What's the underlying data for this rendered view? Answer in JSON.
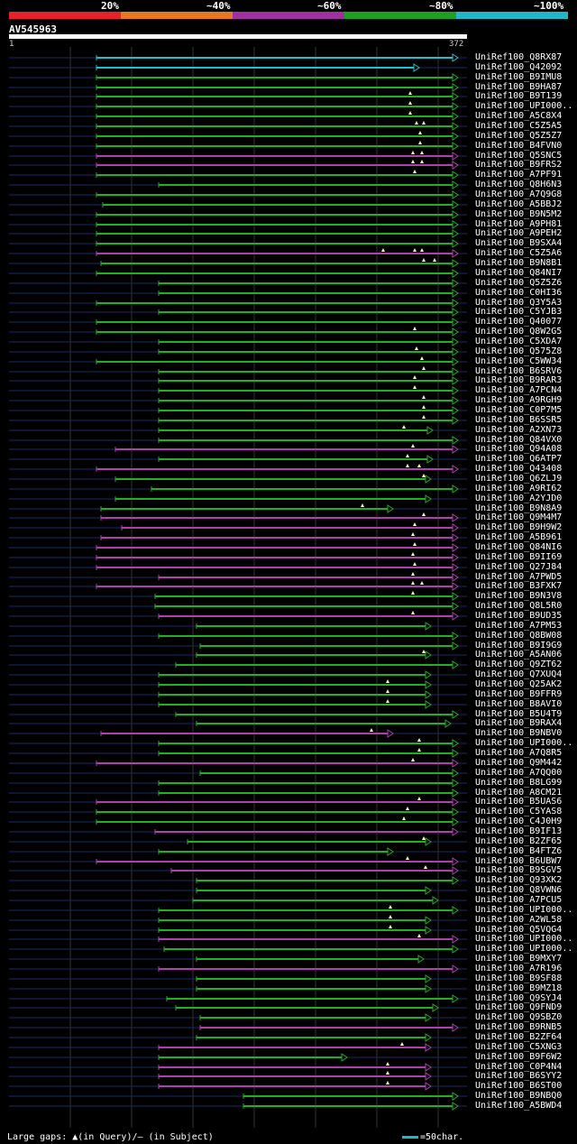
{
  "header": {
    "percent_labels": [
      "20%",
      "~40%",
      "~60%",
      "~80%",
      "~100%"
    ],
    "identity_colors": [
      "#e8202a",
      "#e87820",
      "#a030a0",
      "#20a020",
      "#20b8c8"
    ],
    "query_id": "AV545963",
    "ruler_start": "1",
    "ruler_end": "372",
    "query_length": 372
  },
  "footer": {
    "gaps_text": "Large gaps: ▲(in Query)/– (in Subject)",
    "scale_text": "=50char.",
    "scale_color": "#20b8c8"
  },
  "colors": {
    "cyan": "#20c0d0",
    "green": "#20b020",
    "purple": "#b040b0",
    "unaligned": "#1a2a6a",
    "grid": "#333333"
  },
  "hits": [
    {
      "name": "UniRef100_Q8RX87",
      "start": 107,
      "end": 508,
      "color": "cyan",
      "tri": []
    },
    {
      "name": "UniRef100_Q42092",
      "start": 107,
      "end": 465,
      "color": "cyan",
      "tri": []
    },
    {
      "name": "UniRef100_B9IMU8",
      "start": 107,
      "end": 508,
      "color": "green",
      "tri": []
    },
    {
      "name": "UniRef100_B9HA87",
      "start": 107,
      "end": 508,
      "color": "green",
      "tri": []
    },
    {
      "name": "UniRef100_B9T139",
      "start": 107,
      "end": 508,
      "color": "green",
      "tri": [
        455
      ]
    },
    {
      "name": "UniRef100_UPI000..",
      "start": 107,
      "end": 508,
      "color": "green",
      "tri": [
        455
      ]
    },
    {
      "name": "UniRef100_A5C8X4",
      "start": 107,
      "end": 508,
      "color": "green",
      "tri": [
        455
      ]
    },
    {
      "name": "UniRef100_C5Z5A5",
      "start": 107,
      "end": 508,
      "color": "green",
      "tri": [
        462,
        470
      ]
    },
    {
      "name": "UniRef100_Q5Z5Z7",
      "start": 107,
      "end": 508,
      "color": "green",
      "tri": [
        466
      ]
    },
    {
      "name": "UniRef100_B4FVN0",
      "start": 107,
      "end": 508,
      "color": "green",
      "tri": [
        466
      ]
    },
    {
      "name": "UniRef100_Q5SNC5",
      "start": 107,
      "end": 508,
      "color": "purple",
      "tri": [
        458,
        468
      ]
    },
    {
      "name": "UniRef100_B9FRS2",
      "start": 107,
      "end": 508,
      "color": "purple",
      "tri": [
        458,
        468
      ]
    },
    {
      "name": "UniRef100_A7PF91",
      "start": 107,
      "end": 508,
      "color": "green",
      "tri": [
        460
      ]
    },
    {
      "name": "UniRef100_Q8H6N3",
      "start": 176,
      "end": 508,
      "color": "green",
      "tri": []
    },
    {
      "name": "UniRef100_A7Q9G8",
      "start": 107,
      "end": 508,
      "color": "green",
      "tri": []
    },
    {
      "name": "UniRef100_A5BBJ2",
      "start": 114,
      "end": 508,
      "color": "green",
      "tri": []
    },
    {
      "name": "UniRef100_B9N5M2",
      "start": 107,
      "end": 508,
      "color": "green",
      "tri": []
    },
    {
      "name": "UniRef100_A9PH81",
      "start": 107,
      "end": 508,
      "color": "green",
      "tri": []
    },
    {
      "name": "UniRef100_A9PEH2",
      "start": 107,
      "end": 508,
      "color": "green",
      "tri": []
    },
    {
      "name": "UniRef100_B9SXA4",
      "start": 107,
      "end": 508,
      "color": "green",
      "tri": []
    },
    {
      "name": "UniRef100_C5Z5A6",
      "start": 107,
      "end": 508,
      "color": "purple",
      "tri": [
        425,
        460,
        468
      ]
    },
    {
      "name": "UniRef100_B9N8B1",
      "start": 112,
      "end": 508,
      "color": "green",
      "tri": [
        470,
        482
      ]
    },
    {
      "name": "UniRef100_Q84NI7",
      "start": 107,
      "end": 508,
      "color": "green",
      "tri": []
    },
    {
      "name": "UniRef100_Q5Z5Z6",
      "start": 176,
      "end": 508,
      "color": "green",
      "tri": []
    },
    {
      "name": "UniRef100_C0HI36",
      "start": 176,
      "end": 508,
      "color": "green",
      "tri": []
    },
    {
      "name": "UniRef100_Q3Y5A3",
      "start": 107,
      "end": 508,
      "color": "green",
      "tri": []
    },
    {
      "name": "UniRef100_C5YJB3",
      "start": 176,
      "end": 508,
      "color": "green",
      "tri": []
    },
    {
      "name": "UniRef100_Q40077",
      "start": 107,
      "end": 508,
      "color": "green",
      "tri": []
    },
    {
      "name": "UniRef100_Q8W2G5",
      "start": 107,
      "end": 508,
      "color": "green",
      "tri": [
        460
      ]
    },
    {
      "name": "UniRef100_C5XDA7",
      "start": 176,
      "end": 508,
      "color": "green",
      "tri": []
    },
    {
      "name": "UniRef100_Q575Z8",
      "start": 176,
      "end": 508,
      "color": "green",
      "tri": [
        462
      ]
    },
    {
      "name": "UniRef100_C5WW34",
      "start": 107,
      "end": 508,
      "color": "green",
      "tri": [
        468
      ]
    },
    {
      "name": "UniRef100_B6SRV6",
      "start": 176,
      "end": 508,
      "color": "green",
      "tri": [
        470
      ]
    },
    {
      "name": "UniRef100_B9RAR3",
      "start": 176,
      "end": 508,
      "color": "green",
      "tri": [
        460
      ]
    },
    {
      "name": "UniRef100_A7PCN4",
      "start": 176,
      "end": 508,
      "color": "green",
      "tri": [
        460
      ]
    },
    {
      "name": "UniRef100_A9RGH9",
      "start": 176,
      "end": 508,
      "color": "green",
      "tri": [
        470
      ]
    },
    {
      "name": "UniRef100_C0P7M5",
      "start": 176,
      "end": 508,
      "color": "green",
      "tri": [
        470
      ]
    },
    {
      "name": "UniRef100_B6SSR5",
      "start": 176,
      "end": 508,
      "color": "green",
      "tri": [
        470
      ]
    },
    {
      "name": "UniRef100_A2XN73",
      "start": 176,
      "end": 480,
      "color": "green",
      "tri": [
        448
      ]
    },
    {
      "name": "UniRef100_Q84VX0",
      "start": 176,
      "end": 508,
      "color": "green",
      "tri": []
    },
    {
      "name": "UniRef100_Q94A08",
      "start": 128,
      "end": 508,
      "color": "purple",
      "tri": [
        458
      ]
    },
    {
      "name": "UniRef100_Q6ATP7",
      "start": 176,
      "end": 480,
      "color": "green",
      "tri": [
        452
      ]
    },
    {
      "name": "UniRef100_Q43408",
      "start": 107,
      "end": 508,
      "color": "purple",
      "tri": [
        452,
        465
      ]
    },
    {
      "name": "UniRef100_Q6ZLJ9",
      "start": 128,
      "end": 478,
      "color": "green",
      "tri": [
        470
      ]
    },
    {
      "name": "UniRef100_A9RI62",
      "start": 168,
      "end": 508,
      "color": "green",
      "tri": []
    },
    {
      "name": "UniRef100_A2YJD0",
      "start": 128,
      "end": 478,
      "color": "green",
      "tri": []
    },
    {
      "name": "UniRef100_B9N8A9",
      "start": 112,
      "end": 436,
      "color": "green",
      "tri": [
        402
      ]
    },
    {
      "name": "UniRef100_Q9M4M7",
      "start": 112,
      "end": 508,
      "color": "purple",
      "tri": [
        470
      ]
    },
    {
      "name": "UniRef100_B9H9W2",
      "start": 135,
      "end": 508,
      "color": "purple",
      "tri": [
        460
      ]
    },
    {
      "name": "UniRef100_A5B961",
      "start": 112,
      "end": 508,
      "color": "purple",
      "tri": [
        458
      ]
    },
    {
      "name": "UniRef100_Q84NI6",
      "start": 107,
      "end": 508,
      "color": "purple",
      "tri": [
        460
      ]
    },
    {
      "name": "UniRef100_B9II69",
      "start": 107,
      "end": 508,
      "color": "purple",
      "tri": [
        458
      ]
    },
    {
      "name": "UniRef100_Q27J84",
      "start": 107,
      "end": 508,
      "color": "purple",
      "tri": [
        460
      ]
    },
    {
      "name": "UniRef100_A7PWD5",
      "start": 176,
      "end": 508,
      "color": "purple",
      "tri": [
        458
      ]
    },
    {
      "name": "UniRef100_B3FXK7",
      "start": 107,
      "end": 508,
      "color": "purple",
      "tri": [
        458,
        468
      ]
    },
    {
      "name": "UniRef100_B9N3V8",
      "start": 172,
      "end": 508,
      "color": "green",
      "tri": [
        458
      ]
    },
    {
      "name": "UniRef100_Q8L5R0",
      "start": 172,
      "end": 508,
      "color": "green",
      "tri": []
    },
    {
      "name": "UniRef100_B9UD35",
      "start": 176,
      "end": 508,
      "color": "purple",
      "tri": [
        458
      ]
    },
    {
      "name": "UniRef100_A7PM53",
      "start": 218,
      "end": 478,
      "color": "green",
      "tri": []
    },
    {
      "name": "UniRef100_Q8BW08",
      "start": 176,
      "end": 508,
      "color": "green",
      "tri": []
    },
    {
      "name": "UniRef100_B9I9G9",
      "start": 222,
      "end": 508,
      "color": "green",
      "tri": []
    },
    {
      "name": "UniRef100_A5AN06",
      "start": 218,
      "end": 478,
      "color": "green",
      "tri": [
        470
      ]
    },
    {
      "name": "UniRef100_Q9ZT62",
      "start": 195,
      "end": 508,
      "color": "green",
      "tri": []
    },
    {
      "name": "UniRef100_Q7XUQ4",
      "start": 176,
      "end": 478,
      "color": "green",
      "tri": []
    },
    {
      "name": "UniRef100_Q25AK2",
      "start": 176,
      "end": 478,
      "color": "green",
      "tri": [
        430
      ]
    },
    {
      "name": "UniRef100_B9FFR9",
      "start": 176,
      "end": 478,
      "color": "green",
      "tri": [
        430
      ]
    },
    {
      "name": "UniRef100_B8AVI0",
      "start": 176,
      "end": 478,
      "color": "green",
      "tri": [
        430
      ]
    },
    {
      "name": "UniRef100_B5U4T9",
      "start": 195,
      "end": 508,
      "color": "green",
      "tri": []
    },
    {
      "name": "UniRef100_B9RAX4",
      "start": 218,
      "end": 500,
      "color": "green",
      "tri": []
    },
    {
      "name": "UniRef100_B9NBV0",
      "start": 112,
      "end": 436,
      "color": "purple",
      "tri": [
        412
      ]
    },
    {
      "name": "UniRef100_UPI000..",
      "start": 176,
      "end": 508,
      "color": "green",
      "tri": [
        465
      ]
    },
    {
      "name": "UniRef100_A7Q8R5",
      "start": 176,
      "end": 508,
      "color": "green",
      "tri": [
        465
      ]
    },
    {
      "name": "UniRef100_Q9M442",
      "start": 107,
      "end": 508,
      "color": "purple",
      "tri": [
        458
      ]
    },
    {
      "name": "UniRef100_A7QQ00",
      "start": 222,
      "end": 508,
      "color": "green",
      "tri": []
    },
    {
      "name": "UniRef100_B8LG99",
      "start": 176,
      "end": 508,
      "color": "green",
      "tri": []
    },
    {
      "name": "UniRef100_A8CM21",
      "start": 176,
      "end": 508,
      "color": "green",
      "tri": []
    },
    {
      "name": "UniRef100_B5UAS6",
      "start": 107,
      "end": 508,
      "color": "purple",
      "tri": [
        465
      ]
    },
    {
      "name": "UniRef100_C5YAS8",
      "start": 107,
      "end": 508,
      "color": "green",
      "tri": [
        452
      ]
    },
    {
      "name": "UniRef100_C4J0H9",
      "start": 107,
      "end": 508,
      "color": "green",
      "tri": [
        448
      ]
    },
    {
      "name": "UniRef100_B9IF13",
      "start": 172,
      "end": 508,
      "color": "purple",
      "tri": []
    },
    {
      "name": "UniRef100_B2ZF65",
      "start": 208,
      "end": 478,
      "color": "green",
      "tri": [
        470
      ]
    },
    {
      "name": "UniRef100_B4FTZ6",
      "start": 176,
      "end": 436,
      "color": "green",
      "tri": []
    },
    {
      "name": "UniRef100_B6UBW7",
      "start": 107,
      "end": 508,
      "color": "purple",
      "tri": [
        452
      ]
    },
    {
      "name": "UniRef100_B9SGV5",
      "start": 190,
      "end": 508,
      "color": "purple",
      "tri": [
        472
      ]
    },
    {
      "name": "UniRef100_Q93XK2",
      "start": 218,
      "end": 508,
      "color": "green",
      "tri": []
    },
    {
      "name": "UniRef100_Q8VWN6",
      "start": 218,
      "end": 478,
      "color": "green",
      "tri": []
    },
    {
      "name": "UniRef100_A7PCU5",
      "start": 214,
      "end": 486,
      "color": "green",
      "tri": []
    },
    {
      "name": "UniRef100_UPI000..",
      "start": 176,
      "end": 508,
      "color": "green",
      "tri": [
        433
      ]
    },
    {
      "name": "UniRef100_A2WL58",
      "start": 176,
      "end": 478,
      "color": "green",
      "tri": [
        433
      ]
    },
    {
      "name": "UniRef100_Q5VQG4",
      "start": 176,
      "end": 478,
      "color": "green",
      "tri": [
        433
      ]
    },
    {
      "name": "UniRef100_UPI000..",
      "start": 176,
      "end": 508,
      "color": "purple",
      "tri": [
        465
      ]
    },
    {
      "name": "UniRef100_UPI000..",
      "start": 182,
      "end": 508,
      "color": "green",
      "tri": []
    },
    {
      "name": "UniRef100_B9MXY7",
      "start": 218,
      "end": 470,
      "color": "green",
      "tri": []
    },
    {
      "name": "UniRef100_A7R196",
      "start": 176,
      "end": 508,
      "color": "purple",
      "tri": []
    },
    {
      "name": "UniRef100_B9SF88",
      "start": 218,
      "end": 478,
      "color": "green",
      "tri": []
    },
    {
      "name": "UniRef100_B9MZ18",
      "start": 218,
      "end": 478,
      "color": "green",
      "tri": []
    },
    {
      "name": "UniRef100_Q9SYJ4",
      "start": 185,
      "end": 508,
      "color": "green",
      "tri": []
    },
    {
      "name": "UniRef100_Q9FND9",
      "start": 195,
      "end": 486,
      "color": "green",
      "tri": []
    },
    {
      "name": "UniRef100_Q9SBZ0",
      "start": 222,
      "end": 478,
      "color": "green",
      "tri": []
    },
    {
      "name": "UniRef100_B9RNB5",
      "start": 222,
      "end": 508,
      "color": "purple",
      "tri": []
    },
    {
      "name": "UniRef100_B2ZF64",
      "start": 218,
      "end": 478,
      "color": "green",
      "tri": []
    },
    {
      "name": "UniRef100_C5XNG3",
      "start": 176,
      "end": 478,
      "color": "purple",
      "tri": [
        446
      ]
    },
    {
      "name": "UniRef100_B9F6W2",
      "start": 176,
      "end": 385,
      "color": "green",
      "tri": []
    },
    {
      "name": "UniRef100_C0P4N4",
      "start": 176,
      "end": 478,
      "color": "purple",
      "tri": [
        430
      ]
    },
    {
      "name": "UniRef100_B6SYY2",
      "start": 176,
      "end": 478,
      "color": "purple",
      "tri": [
        430
      ]
    },
    {
      "name": "UniRef100_B6ST00",
      "start": 176,
      "end": 478,
      "color": "purple",
      "tri": [
        430
      ]
    },
    {
      "name": "UniRef100_B9NBQ0",
      "start": 270,
      "end": 508,
      "color": "green",
      "tri": []
    },
    {
      "name": "UniRef100_A5BWD4",
      "start": 270,
      "end": 508,
      "color": "green",
      "tri": []
    }
  ]
}
